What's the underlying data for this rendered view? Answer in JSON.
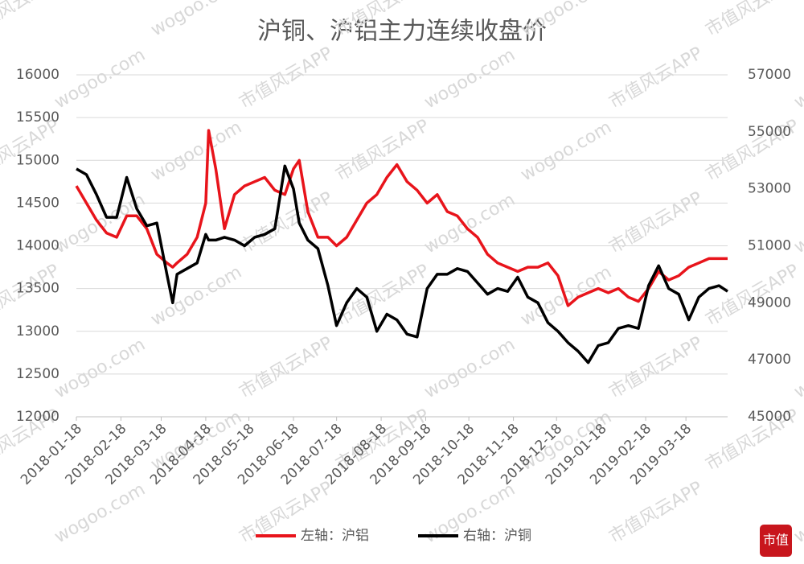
{
  "chart_data": {
    "type": "line",
    "title": "沪铜、沪铝主力连续收盘价",
    "watermark": [
      "市值风云APP",
      "wogoo.com"
    ],
    "logo": "市值",
    "x": [
      "2018-01-18",
      "2018-01-25",
      "2018-02-01",
      "2018-02-08",
      "2018-02-15",
      "2018-02-22",
      "2018-03-01",
      "2018-03-08",
      "2018-03-15",
      "2018-03-22",
      "2018-03-26",
      "2018-03-29",
      "2018-04-05",
      "2018-04-12",
      "2018-04-18",
      "2018-04-20",
      "2018-04-25",
      "2018-05-01",
      "2018-05-08",
      "2018-05-15",
      "2018-05-22",
      "2018-05-29",
      "2018-06-05",
      "2018-06-12",
      "2018-06-18",
      "2018-06-22",
      "2018-06-28",
      "2018-07-05",
      "2018-07-12",
      "2018-07-18",
      "2018-07-25",
      "2018-08-01",
      "2018-08-08",
      "2018-08-15",
      "2018-08-22",
      "2018-08-29",
      "2018-09-05",
      "2018-09-12",
      "2018-09-19",
      "2018-09-26",
      "2018-10-03",
      "2018-10-10",
      "2018-10-17",
      "2018-10-24",
      "2018-10-31",
      "2018-11-07",
      "2018-11-14",
      "2018-11-21",
      "2018-11-28",
      "2018-12-05",
      "2018-12-12",
      "2018-12-19",
      "2018-12-26",
      "2019-01-02",
      "2019-01-09",
      "2019-01-16",
      "2019-01-23",
      "2019-01-30",
      "2019-02-06",
      "2019-02-13",
      "2019-02-20",
      "2019-02-27",
      "2019-03-06",
      "2019-03-13",
      "2019-03-20",
      "2019-03-27",
      "2019-04-03",
      "2019-04-10",
      "2019-04-16"
    ],
    "series": [
      {
        "name": "左轴：沪铝",
        "color": "#e8141b",
        "values": [
          14700,
          14500,
          14300,
          14150,
          14100,
          14350,
          14350,
          14200,
          13900,
          13800,
          13750,
          13800,
          13900,
          14100,
          14500,
          15350,
          14900,
          14200,
          14600,
          14700,
          14750,
          14800,
          14650,
          14600,
          14900,
          15000,
          14400,
          14100,
          14100,
          14000,
          14100,
          14300,
          14500,
          14600,
          14800,
          14950,
          14750,
          14650,
          14500,
          14600,
          14400,
          14350,
          14200,
          14100,
          13900,
          13800,
          13750,
          13700,
          13750,
          13750,
          13800,
          13650,
          13300,
          13400,
          13450,
          13500,
          13450,
          13500,
          13400,
          13350,
          13500,
          13700,
          13600,
          13650,
          13750,
          13800,
          13850,
          13850,
          13850
        ]
      },
      {
        "name": "右轴：沪铜",
        "color": "#000000",
        "axis": "y2",
        "values": [
          53700,
          53500,
          52800,
          52000,
          52000,
          53400,
          52300,
          51700,
          51800,
          50000,
          49000,
          50000,
          50200,
          50400,
          51400,
          51200,
          51200,
          51300,
          51200,
          51000,
          51300,
          51400,
          51600,
          53800,
          53000,
          51800,
          51200,
          50900,
          49600,
          48200,
          49000,
          49500,
          49200,
          48000,
          48600,
          48400,
          47900,
          47800,
          49500,
          50000,
          50000,
          50200,
          50100,
          49700,
          49300,
          49500,
          49400,
          49900,
          49200,
          49000,
          48300,
          48000,
          47600,
          47300,
          46900,
          47500,
          47600,
          48100,
          48200,
          48100,
          49600,
          50300,
          49500,
          49300,
          48400,
          49200,
          49500,
          49600,
          49400
        ]
      }
    ],
    "xticks": [
      "2018-01-18",
      "2018-02-18",
      "2018-03-18",
      "2018-04-18",
      "2018-05-18",
      "2018-06-18",
      "2018-07-18",
      "2018-08-18",
      "2018-09-18",
      "2018-10-18",
      "2018-11-18",
      "2018-12-18",
      "2019-01-18",
      "2019-02-18",
      "2019-03-18"
    ],
    "ylim": [
      12000,
      16000
    ],
    "yticks": [
      12000,
      12500,
      13000,
      13500,
      14000,
      14500,
      15000,
      15500,
      16000
    ],
    "y2lim": [
      45000,
      57000
    ],
    "y2ticks": [
      45000,
      47000,
      49000,
      51000,
      53000,
      55000,
      57000
    ],
    "grid": true
  }
}
